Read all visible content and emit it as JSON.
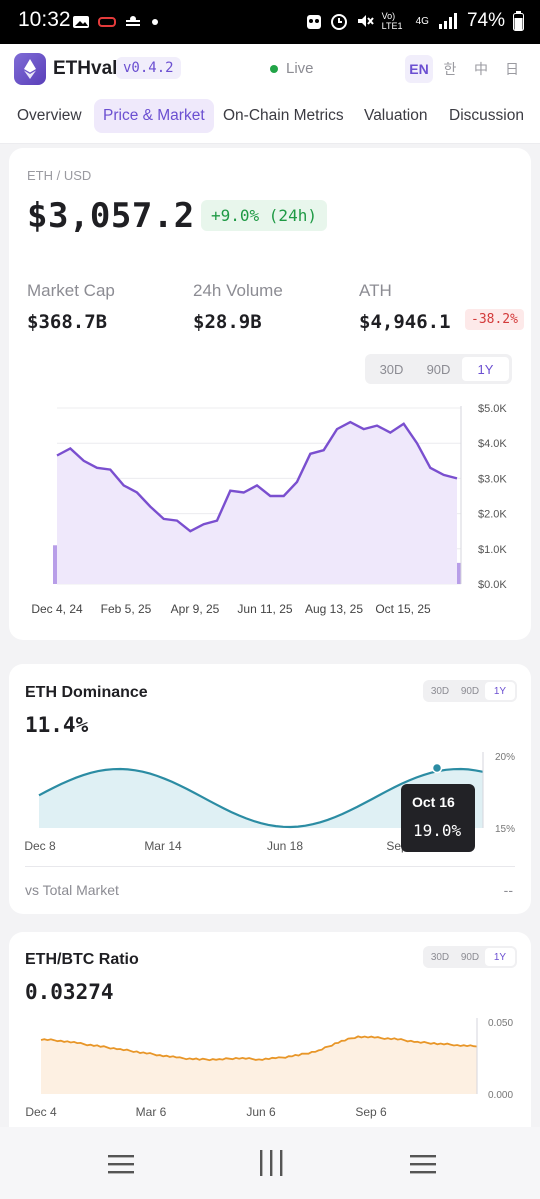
{
  "status_bar": {
    "time": "10:32",
    "network": "4G",
    "lte": "Vo) LTE1",
    "battery": "74%",
    "icons": [
      "gallery-icon",
      "car-icon",
      "weather-icon",
      "dot-icon",
      "panda-icon",
      "alarm-icon",
      "mute-icon",
      "signal-icon",
      "battery-icon"
    ]
  },
  "header": {
    "app_name": "ETHval",
    "version": "v0.4.2",
    "live_label": "Live",
    "live_color": "#22a447",
    "languages": [
      "EN",
      "한",
      "中",
      "日"
    ],
    "active_language": "EN"
  },
  "tabs": [
    {
      "label": "Overview",
      "active": false
    },
    {
      "label": "Price & Market",
      "active": true
    },
    {
      "label": "On-Chain Metrics",
      "active": false
    },
    {
      "label": "Valuation",
      "active": false
    },
    {
      "label": "Discussion",
      "active": false
    }
  ],
  "price": {
    "pair": "ETH / USD",
    "value": "$3,057.2",
    "change": "+9.0% (24h)",
    "stats": [
      {
        "label": "Market Cap",
        "value": "$368.7B"
      },
      {
        "label": "24h Volume",
        "value": "$28.9B"
      },
      {
        "label": "ATH",
        "value": "$4,946.1",
        "badge": "-38.2%"
      }
    ],
    "ranges": [
      "30D",
      "90D",
      "1Y"
    ],
    "active_range": "1Y"
  },
  "dominance": {
    "title": "ETH Dominance",
    "value": "11.4%",
    "ranges": [
      "30D",
      "90D",
      "1Y"
    ],
    "active_range": "1Y",
    "tooltip": {
      "date": "Oct 16",
      "value": "19.0%"
    },
    "vs_label": "vs Total Market",
    "vs_value": "--"
  },
  "ratio": {
    "title": "ETH/BTC Ratio",
    "value": "0.03274",
    "ranges": [
      "30D",
      "90D",
      "1Y"
    ],
    "active_range": "1Y"
  },
  "chart_data": [
    {
      "type": "line",
      "title": "",
      "x": [
        "Dec 4, 24",
        "Feb 5, 25",
        "Apr 9, 25",
        "Jun 11, 25",
        "Aug 13, 25",
        "Oct 15, 25"
      ],
      "ytick_labels": [
        "$5.0K",
        "$4.0K",
        "$3.0K",
        "$2.0K",
        "$1.0K",
        "$0.0K"
      ],
      "ylim": [
        0,
        5000
      ],
      "series_price": [
        3650,
        3850,
        3500,
        3300,
        3250,
        2800,
        2600,
        2200,
        1850,
        1800,
        1500,
        1700,
        1800,
        2650,
        2600,
        2800,
        2500,
        2500,
        2900,
        3700,
        3800,
        4400,
        4600,
        4400,
        4500,
        4300,
        4550,
        4000,
        3300,
        3100,
        3000
      ],
      "series_volume": [
        1100,
        1200,
        750,
        600,
        500,
        450,
        600,
        550,
        450,
        600,
        550,
        350,
        450,
        500,
        450,
        600,
        550,
        500,
        650,
        500,
        450,
        800,
        900,
        850,
        700,
        550,
        500,
        700,
        1100,
        1200,
        600
      ],
      "grid": true,
      "color": "#7a4fcf"
    },
    {
      "type": "area",
      "title": "ETH Dominance",
      "x": [
        "Dec 8",
        "Mar 14",
        "Jun 18",
        "Sep"
      ],
      "ytick_labels": [
        "20%",
        "15%"
      ],
      "ylim": [
        15,
        20
      ],
      "highlight": {
        "x": "Oct 16",
        "y": 19.0
      },
      "color": "#2b8ca3"
    },
    {
      "type": "area",
      "title": "ETH/BTC Ratio",
      "x": [
        "Dec 4",
        "Mar 6",
        "Jun 6",
        "Sep 6"
      ],
      "ytick_labels": [
        "0.050",
        "0.000"
      ],
      "ylim": [
        0,
        0.05
      ],
      "series": [
        0.038,
        0.037,
        0.035,
        0.033,
        0.031,
        0.029,
        0.027,
        0.025,
        0.024,
        0.024,
        0.025,
        0.024,
        0.025,
        0.027,
        0.03,
        0.036,
        0.04,
        0.039,
        0.038,
        0.036,
        0.035,
        0.034,
        0.033
      ],
      "color": "#e89628"
    }
  ]
}
